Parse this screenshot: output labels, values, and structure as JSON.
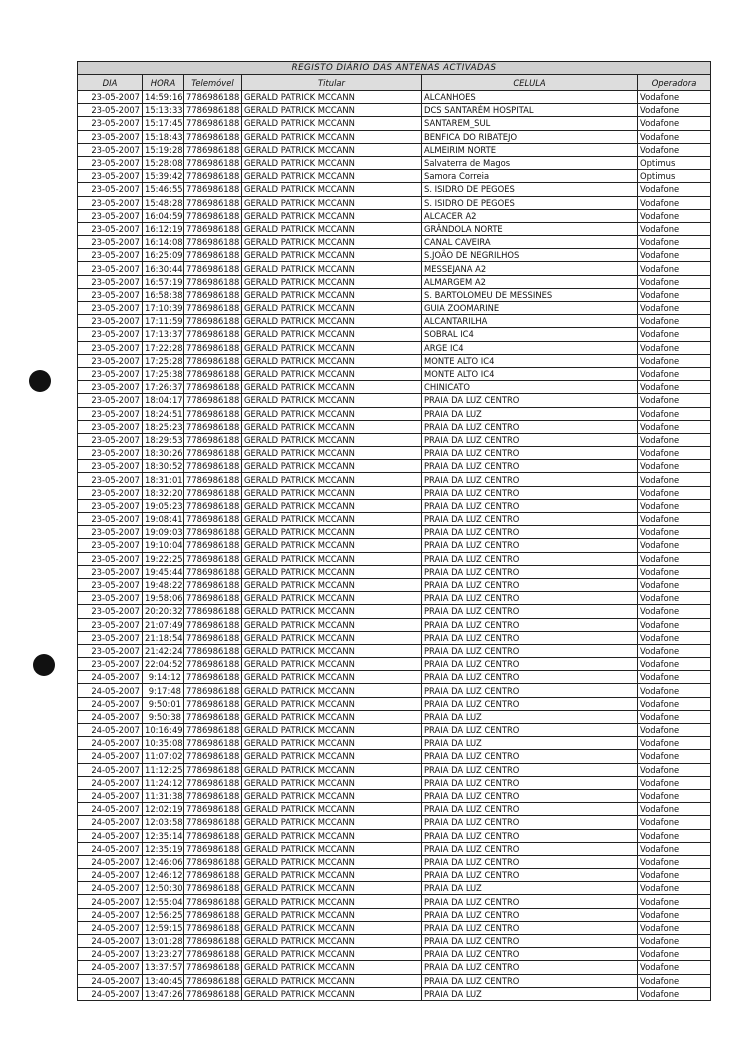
{
  "table": {
    "title": "REGISTO DIÁRIO DAS ANTENAS ACTIVADAS",
    "headers": [
      "DIA",
      "HORA",
      "Telemóvel",
      "Titular",
      "CELULA",
      "Operadora"
    ],
    "rows": [
      [
        "23-05-2007",
        "14:59:16",
        "7786986188",
        "GERALD PATRICK MCCANN",
        "ALCANHOES",
        "Vodafone"
      ],
      [
        "23-05-2007",
        "15:13:33",
        "7786986188",
        "GERALD PATRICK MCCANN",
        "DCS SANTARÉM HOSPITAL",
        "Vodafone"
      ],
      [
        "23-05-2007",
        "15:17:45",
        "7786986188",
        "GERALD PATRICK MCCANN",
        "SANTAREM_SUL",
        "Vodafone"
      ],
      [
        "23-05-2007",
        "15:18:43",
        "7786986188",
        "GERALD PATRICK MCCANN",
        "BENFICA DO RIBATEJO",
        "Vodafone"
      ],
      [
        "23-05-2007",
        "15:19:28",
        "7786986188",
        "GERALD PATRICK MCCANN",
        "ALMEIRIM NORTE",
        "Vodafone"
      ],
      [
        "23-05-2007",
        "15:28:08",
        "7786986188",
        "GERALD PATRICK MCCANN",
        "Salvaterra de Magos",
        "Optimus"
      ],
      [
        "23-05-2007",
        "15:39:42",
        "7786986188",
        "GERALD PATRICK MCCANN",
        "Samora Correia",
        "Optimus"
      ],
      [
        "23-05-2007",
        "15:46:55",
        "7786986188",
        "GERALD PATRICK MCCANN",
        "S. ISIDRO DE PEGOES",
        "Vodafone"
      ],
      [
        "23-05-2007",
        "15:48:28",
        "7786986188",
        "GERALD PATRICK MCCANN",
        "S. ISIDRO DE PEGOES",
        "Vodafone"
      ],
      [
        "23-05-2007",
        "16:04:59",
        "7786986188",
        "GERALD PATRICK MCCANN",
        "ALCACER A2",
        "Vodafone"
      ],
      [
        "23-05-2007",
        "16:12:19",
        "7786986188",
        "GERALD PATRICK MCCANN",
        "GRÂNDOLA NORTE",
        "Vodafone"
      ],
      [
        "23-05-2007",
        "16:14:08",
        "7786986188",
        "GERALD PATRICK MCCANN",
        "CANAL CAVEIRA",
        "Vodafone"
      ],
      [
        "23-05-2007",
        "16:25:09",
        "7786986188",
        "GERALD PATRICK MCCANN",
        "S.JOÃO DE NEGRILHOS",
        "Vodafone"
      ],
      [
        "23-05-2007",
        "16:30:44",
        "7786986188",
        "GERALD PATRICK MCCANN",
        "MESSEJANA A2",
        "Vodafone"
      ],
      [
        "23-05-2007",
        "16:57:19",
        "7786986188",
        "GERALD PATRICK MCCANN",
        "ALMARGEM A2",
        "Vodafone"
      ],
      [
        "23-05-2007",
        "16:58:38",
        "7786986188",
        "GERALD PATRICK MCCANN",
        "S. BARTOLOMEU DE MESSINES",
        "Vodafone"
      ],
      [
        "23-05-2007",
        "17:10:39",
        "7786986188",
        "GERALD PATRICK MCCANN",
        "GUIA ZOOMARINE",
        "Vodafone"
      ],
      [
        "23-05-2007",
        "17:11:59",
        "7786986188",
        "GERALD PATRICK MCCANN",
        "ALCANTARILHA",
        "Vodafone"
      ],
      [
        "23-05-2007",
        "17:13:37",
        "7786986188",
        "GERALD PATRICK MCCANN",
        "SOBRAL IC4",
        "Vodafone"
      ],
      [
        "23-05-2007",
        "17:22:28",
        "7786986188",
        "GERALD PATRICK MCCANN",
        "ARGE IC4",
        "Vodafone"
      ],
      [
        "23-05-2007",
        "17:25:28",
        "7786986188",
        "GERALD PATRICK MCCANN",
        "MONTE ALTO IC4",
        "Vodafone"
      ],
      [
        "23-05-2007",
        "17:25:38",
        "7786986188",
        "GERALD PATRICK MCCANN",
        "MONTE ALTO IC4",
        "Vodafone"
      ],
      [
        "23-05-2007",
        "17:26:37",
        "7786986188",
        "GERALD PATRICK MCCANN",
        "CHINICATO",
        "Vodafone"
      ],
      [
        "23-05-2007",
        "18:04:17",
        "7786986188",
        "GERALD PATRICK MCCANN",
        "PRAIA DA LUZ CENTRO",
        "Vodafone"
      ],
      [
        "23-05-2007",
        "18:24:51",
        "7786986188",
        "GERALD PATRICK MCCANN",
        "PRAIA DA LUZ",
        "Vodafone"
      ],
      [
        "23-05-2007",
        "18:25:23",
        "7786986188",
        "GERALD PATRICK MCCANN",
        "PRAIA DA LUZ CENTRO",
        "Vodafone"
      ],
      [
        "23-05-2007",
        "18:29:53",
        "7786986188",
        "GERALD PATRICK MCCANN",
        "PRAIA DA LUZ CENTRO",
        "Vodafone"
      ],
      [
        "23-05-2007",
        "18:30:26",
        "7786986188",
        "GERALD PATRICK MCCANN",
        "PRAIA DA LUZ CENTRO",
        "Vodafone"
      ],
      [
        "23-05-2007",
        "18:30:52",
        "7786986188",
        "GERALD PATRICK MCCANN",
        "PRAIA DA LUZ CENTRO",
        "Vodafone"
      ],
      [
        "23-05-2007",
        "18:31:01",
        "7786986188",
        "GERALD PATRICK MCCANN",
        "PRAIA DA LUZ CENTRO",
        "Vodafone"
      ],
      [
        "23-05-2007",
        "18:32:20",
        "7786986188",
        "GERALD PATRICK MCCANN",
        "PRAIA DA LUZ CENTRO",
        "Vodafone"
      ],
      [
        "23-05-2007",
        "19:05:23",
        "7786986188",
        "GERALD PATRICK MCCANN",
        "PRAIA DA LUZ CENTRO",
        "Vodafone"
      ],
      [
        "23-05-2007",
        "19:08:41",
        "7786986188",
        "GERALD PATRICK MCCANN",
        "PRAIA DA LUZ CENTRO",
        "Vodafone"
      ],
      [
        "23-05-2007",
        "19:09:03",
        "7786986188",
        "GERALD PATRICK MCCANN",
        "PRAIA DA LUZ CENTRO",
        "Vodafone"
      ],
      [
        "23-05-2007",
        "19:10:04",
        "7786986188",
        "GERALD PATRICK MCCANN",
        "PRAIA DA LUZ CENTRO",
        "Vodafone"
      ],
      [
        "23-05-2007",
        "19:22:25",
        "7786986188",
        "GERALD PATRICK MCCANN",
        "PRAIA DA LUZ CENTRO",
        "Vodafone"
      ],
      [
        "23-05-2007",
        "19:45:44",
        "7786986188",
        "GERALD PATRICK MCCANN",
        "PRAIA DA LUZ CENTRO",
        "Vodafone"
      ],
      [
        "23-05-2007",
        "19:48:22",
        "7786986188",
        "GERALD PATRICK MCCANN",
        "PRAIA DA LUZ CENTRO",
        "Vodafone"
      ],
      [
        "23-05-2007",
        "19:58:06",
        "7786986188",
        "GERALD PATRICK MCCANN",
        "PRAIA DA LUZ CENTRO",
        "Vodafone"
      ],
      [
        "23-05-2007",
        "20:20:32",
        "7786986188",
        "GERALD PATRICK MCCANN",
        "PRAIA DA LUZ CENTRO",
        "Vodafone"
      ],
      [
        "23-05-2007",
        "21:07:49",
        "7786986188",
        "GERALD PATRICK MCCANN",
        "PRAIA DA LUZ CENTRO",
        "Vodafone"
      ],
      [
        "23-05-2007",
        "21:18:54",
        "7786986188",
        "GERALD PATRICK MCCANN",
        "PRAIA DA LUZ CENTRO",
        "Vodafone"
      ],
      [
        "23-05-2007",
        "21:42:24",
        "7786986188",
        "GERALD PATRICK MCCANN",
        "PRAIA DA LUZ CENTRO",
        "Vodafone"
      ],
      [
        "23-05-2007",
        "22:04:52",
        "7786986188",
        "GERALD PATRICK MCCANN",
        "PRAIA DA LUZ CENTRO",
        "Vodafone"
      ],
      [
        "24-05-2007",
        "9:14:12",
        "7786986188",
        "GERALD PATRICK MCCANN",
        "PRAIA DA LUZ CENTRO",
        "Vodafone"
      ],
      [
        "24-05-2007",
        "9:17:48",
        "7786986188",
        "GERALD PATRICK MCCANN",
        "PRAIA DA LUZ CENTRO",
        "Vodafone"
      ],
      [
        "24-05-2007",
        "9:50:01",
        "7786986188",
        "GERALD PATRICK MCCANN",
        "PRAIA DA LUZ CENTRO",
        "Vodafone"
      ],
      [
        "24-05-2007",
        "9:50:38",
        "7786986188",
        "GERALD PATRICK MCCANN",
        "PRAIA DA LUZ",
        "Vodafone"
      ],
      [
        "24-05-2007",
        "10:16:49",
        "7786986188",
        "GERALD PATRICK MCCANN",
        "PRAIA DA LUZ CENTRO",
        "Vodafone"
      ],
      [
        "24-05-2007",
        "10:35:08",
        "7786986188",
        "GERALD PATRICK MCCANN",
        "PRAIA DA LUZ",
        "Vodafone"
      ],
      [
        "24-05-2007",
        "11:07:02",
        "7786986188",
        "GERALD PATRICK MCCANN",
        "PRAIA DA LUZ CENTRO",
        "Vodafone"
      ],
      [
        "24-05-2007",
        "11:12:25",
        "7786986188",
        "GERALD PATRICK MCCANN",
        "PRAIA DA LUZ CENTRO",
        "Vodafone"
      ],
      [
        "24-05-2007",
        "11:24:12",
        "7786986188",
        "GERALD PATRICK MCCANN",
        "PRAIA DA LUZ CENTRO",
        "Vodafone"
      ],
      [
        "24-05-2007",
        "11:31:38",
        "7786986188",
        "GERALD PATRICK MCCANN",
        "PRAIA DA LUZ CENTRO",
        "Vodafone"
      ],
      [
        "24-05-2007",
        "12:02:19",
        "7786986188",
        "GERALD PATRICK MCCANN",
        "PRAIA DA LUZ CENTRO",
        "Vodafone"
      ],
      [
        "24-05-2007",
        "12:03:58",
        "7786986188",
        "GERALD PATRICK MCCANN",
        "PRAIA DA LUZ CENTRO",
        "Vodafone"
      ],
      [
        "24-05-2007",
        "12:35:14",
        "7786986188",
        "GERALD PATRICK MCCANN",
        "PRAIA DA LUZ CENTRO",
        "Vodafone"
      ],
      [
        "24-05-2007",
        "12:35:19",
        "7786986188",
        "GERALD PATRICK MCCANN",
        "PRAIA DA LUZ CENTRO",
        "Vodafone"
      ],
      [
        "24-05-2007",
        "12:46:06",
        "7786986188",
        "GERALD PATRICK MCCANN",
        "PRAIA DA LUZ CENTRO",
        "Vodafone"
      ],
      [
        "24-05-2007",
        "12:46:12",
        "7786986188",
        "GERALD PATRICK MCCANN",
        "PRAIA DA LUZ CENTRO",
        "Vodafone"
      ],
      [
        "24-05-2007",
        "12:50:30",
        "7786986188",
        "GERALD PATRICK MCCANN",
        "PRAIA DA LUZ",
        "Vodafone"
      ],
      [
        "24-05-2007",
        "12:55:04",
        "7786986188",
        "GERALD PATRICK MCCANN",
        "PRAIA DA LUZ CENTRO",
        "Vodafone"
      ],
      [
        "24-05-2007",
        "12:56:25",
        "7786986188",
        "GERALD PATRICK MCCANN",
        "PRAIA DA LUZ CENTRO",
        "Vodafone"
      ],
      [
        "24-05-2007",
        "12:59:15",
        "7786986188",
        "GERALD PATRICK MCCANN",
        "PRAIA DA LUZ CENTRO",
        "Vodafone"
      ],
      [
        "24-05-2007",
        "13:01:28",
        "7786986188",
        "GERALD PATRICK MCCANN",
        "PRAIA DA LUZ CENTRO",
        "Vodafone"
      ],
      [
        "24-05-2007",
        "13:23:27",
        "7786986188",
        "GERALD PATRICK MCCANN",
        "PRAIA DA LUZ CENTRO",
        "Vodafone"
      ],
      [
        "24-05-2007",
        "13:37:57",
        "7786986188",
        "GERALD PATRICK MCCANN",
        "PRAIA DA LUZ CENTRO",
        "Vodafone"
      ],
      [
        "24-05-2007",
        "13:40:45",
        "7786986188",
        "GERALD PATRICK MCCANN",
        "PRAIA DA LUZ CENTRO",
        "Vodafone"
      ],
      [
        "24-05-2007",
        "13:47:26",
        "7786986188",
        "GERALD PATRICK MCCANN",
        "PRAIA DA LUZ",
        "Vodafone"
      ]
    ]
  }
}
